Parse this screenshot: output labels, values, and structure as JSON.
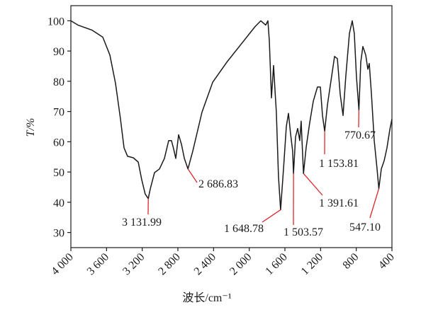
{
  "chart_data": {
    "type": "line",
    "xlabel": "波长/cm⁻¹",
    "ylabel": "T/%",
    "xlim": [
      4000,
      400
    ],
    "ylim": [
      25,
      105
    ],
    "xticks": [
      {
        "value": 4000,
        "label": "4 000"
      },
      {
        "value": 3600,
        "label": "3 600"
      },
      {
        "value": 3200,
        "label": "3 200"
      },
      {
        "value": 2800,
        "label": "2 800"
      },
      {
        "value": 2400,
        "label": "2 400"
      },
      {
        "value": 2000,
        "label": "2 000"
      },
      {
        "value": 1600,
        "label": "1 600"
      },
      {
        "value": 1200,
        "label": "1 200"
      },
      800,
      400
    ],
    "yticks": [
      30,
      40,
      50,
      60,
      70,
      80,
      90,
      100
    ],
    "color": "#1a1a1a",
    "x": [
      4000,
      3921,
      3762,
      3642,
      3563,
      3499,
      3444,
      3404,
      3364,
      3301,
      3245,
      3205,
      3166,
      3131.99,
      3110,
      3062,
      3007,
      2951,
      2903,
      2872,
      2848,
      2824,
      2792,
      2760,
      2728,
      2686.83,
      2633,
      2530,
      2410,
      2252,
      2093,
      1934,
      1870,
      1815,
      1791,
      1775,
      1751,
      1727,
      1711,
      1696,
      1672,
      1648.78,
      1616,
      1584,
      1560,
      1537,
      1513,
      1503.57,
      1481,
      1457,
      1434,
      1418,
      1391.61,
      1362,
      1322,
      1282,
      1235,
      1203,
      1179,
      1153.81,
      1123,
      1076,
      1044,
      1012,
      980,
      948,
      917,
      877,
      845,
      822,
      798,
      770.67,
      750,
      726,
      694,
      670,
      654,
      630,
      599,
      567,
      547.1,
      519,
      487,
      456,
      424,
      400
    ],
    "values": [
      100,
      98.6,
      96.9,
      94.6,
      88.7,
      79.3,
      67.5,
      58,
      55.2,
      54.7,
      53.3,
      47.4,
      42.7,
      41.2,
      44.4,
      49.8,
      51,
      54.5,
      60.4,
      60.4,
      57.6,
      54.5,
      62.3,
      59.2,
      54.5,
      51,
      56.9,
      69.8,
      79.7,
      86.3,
      92.2,
      98.1,
      100,
      98.6,
      100,
      93.4,
      74.5,
      85.2,
      77,
      69.8,
      48.6,
      37.5,
      51,
      65.1,
      69.4,
      62.8,
      56.9,
      49.5,
      61.6,
      64.4,
      60.4,
      66.8,
      49.5,
      58,
      66.3,
      73.4,
      78.1,
      78.1,
      68.7,
      63.5,
      72.2,
      81.6,
      88.2,
      87.5,
      75.7,
      68.7,
      81.6,
      95.8,
      100,
      95.8,
      81.6,
      70.5,
      86.3,
      91.5,
      88.7,
      84,
      85.9,
      75.7,
      60.4,
      51,
      44.5,
      51,
      53.8,
      58,
      64,
      67.5
    ],
    "annotations": [
      {
        "x": 3131.99,
        "y": 41.2,
        "label": "3 131.99"
      },
      {
        "x": 2686.83,
        "y": 51,
        "label": "2 686.83"
      },
      {
        "x": 1648.78,
        "y": 37.5,
        "label": "1 648.78"
      },
      {
        "x": 1503.57,
        "y": 49.5,
        "label": "1 503.57"
      },
      {
        "x": 1391.61,
        "y": 49.5,
        "label": "1 391.61"
      },
      {
        "x": 1153.81,
        "y": 63.5,
        "label": "1 153.81"
      },
      {
        "x": 770.67,
        "y": 70.5,
        "label": "770.67"
      },
      {
        "x": 547.1,
        "y": 44.5,
        "label": "547.10"
      }
    ]
  }
}
